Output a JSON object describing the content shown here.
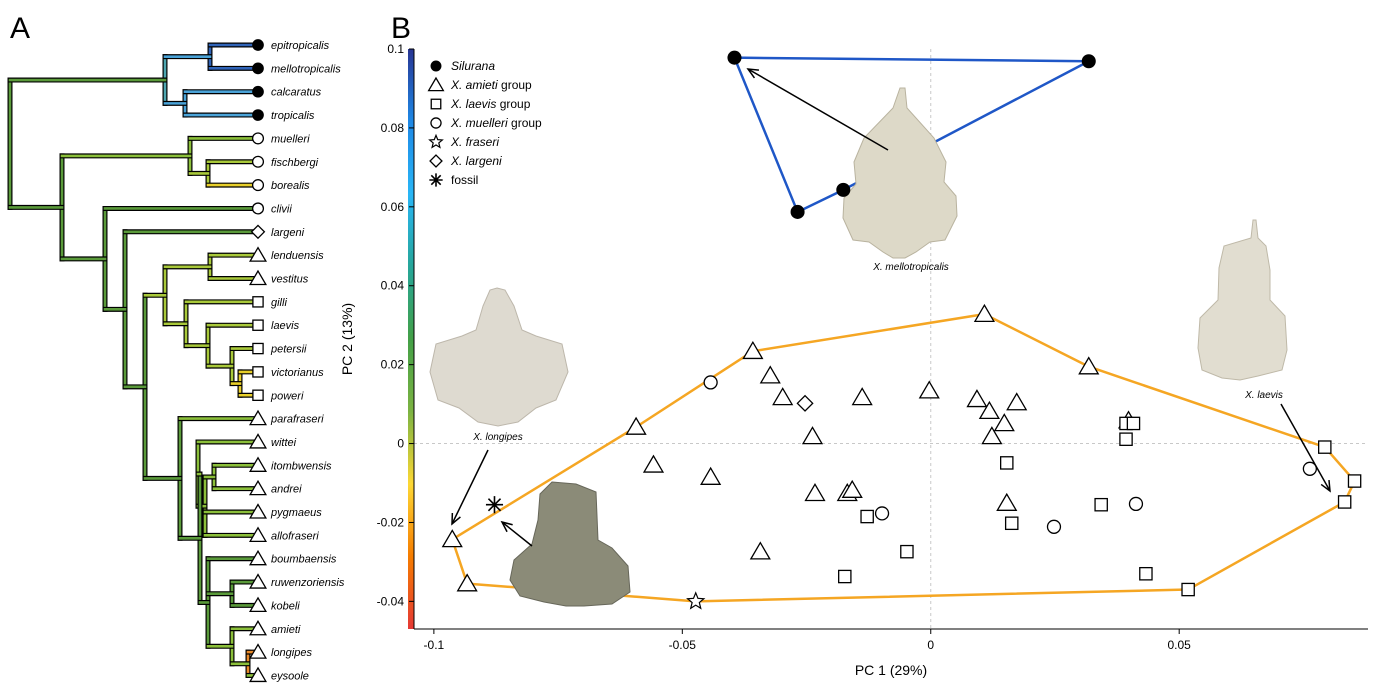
{
  "panels": {
    "a": "A",
    "b": "B"
  },
  "tree": {
    "tips": [
      {
        "name": "epitropicalis",
        "group": "silurana"
      },
      {
        "name": "mellotropicalis",
        "group": "silurana"
      },
      {
        "name": "calcaratus",
        "group": "silurana"
      },
      {
        "name": "tropicalis",
        "group": "silurana"
      },
      {
        "name": "muelleri",
        "group": "muelleri"
      },
      {
        "name": "fischbergi",
        "group": "muelleri"
      },
      {
        "name": "borealis",
        "group": "muelleri"
      },
      {
        "name": "clivii",
        "group": "muelleri"
      },
      {
        "name": "largeni",
        "group": "largeni"
      },
      {
        "name": "lenduensis",
        "group": "amieti"
      },
      {
        "name": "vestitus",
        "group": "amieti"
      },
      {
        "name": "gilli",
        "group": "laevis"
      },
      {
        "name": "laevis",
        "group": "laevis"
      },
      {
        "name": "petersii",
        "group": "laevis"
      },
      {
        "name": "victorianus",
        "group": "laevis"
      },
      {
        "name": "poweri",
        "group": "laevis"
      },
      {
        "name": "parafraseri",
        "group": "amieti"
      },
      {
        "name": "wittei",
        "group": "amieti"
      },
      {
        "name": "itombwensis",
        "group": "amieti"
      },
      {
        "name": "andrei",
        "group": "amieti"
      },
      {
        "name": "pygmaeus",
        "group": "amieti"
      },
      {
        "name": "allofraseri",
        "group": "amieti"
      },
      {
        "name": "boumbaensis",
        "group": "amieti"
      },
      {
        "name": "ruwenzoriensis",
        "group": "amieti"
      },
      {
        "name": "kobeli",
        "group": "amieti"
      },
      {
        "name": "amieti",
        "group": "amieti"
      },
      {
        "name": "longipes",
        "group": "amieti"
      },
      {
        "name": "eysoole",
        "group": "amieti"
      }
    ]
  },
  "chart_data": {
    "type": "scatter",
    "xlabel": "PC 1 (29%)",
    "ylabel": "PC 2 (13%)",
    "xlim": [
      -0.104,
      0.088
    ],
    "ylim": [
      -0.047,
      0.1
    ],
    "xticks": [
      {
        "v": -0.1,
        "label": "-0.1"
      },
      {
        "v": -0.05,
        "label": "-0.05"
      },
      {
        "v": 0,
        "label": "0"
      },
      {
        "v": 0.05,
        "label": "0.05"
      }
    ],
    "yticks": [
      {
        "v": 0.1,
        "label": "0.1"
      },
      {
        "v": 0.08,
        "label": "0.08"
      },
      {
        "v": 0.06,
        "label": "0.06"
      },
      {
        "v": 0.04,
        "label": "0.04"
      },
      {
        "v": 0.02,
        "label": "0.02"
      },
      {
        "v": 0,
        "label": "0"
      },
      {
        "v": -0.02,
        "label": "-0.02"
      },
      {
        "v": -0.04,
        "label": "-0.04"
      }
    ],
    "legend": {
      "placement": "top-left",
      "entries": [
        {
          "marker": "circle-filled",
          "parts": [
            {
              "t": "Silurana",
              "i": true
            }
          ]
        },
        {
          "marker": "triangle",
          "parts": [
            {
              "t": "X. amieti",
              "i": true
            },
            {
              "t": " group",
              "i": false
            }
          ]
        },
        {
          "marker": "square",
          "parts": [
            {
              "t": "X. laevis",
              "i": true
            },
            {
              "t": " group",
              "i": false
            }
          ]
        },
        {
          "marker": "circle",
          "parts": [
            {
              "t": "X. muelleri",
              "i": true
            },
            {
              "t": " group",
              "i": false
            }
          ]
        },
        {
          "marker": "star",
          "parts": [
            {
              "t": "X. fraseri",
              "i": true
            }
          ]
        },
        {
          "marker": "diamond",
          "parts": [
            {
              "t": "X. largeni",
              "i": true
            }
          ]
        },
        {
          "marker": "asterisk",
          "parts": [
            {
              "t": "fossil",
              "i": false
            }
          ]
        }
      ]
    },
    "series": [
      {
        "marker": "circle-filled",
        "points": [
          [
            -0.0395,
            0.0978
          ],
          [
            0.0318,
            0.0969
          ],
          [
            -0.0176,
            0.0643
          ],
          [
            -0.0268,
            0.0587
          ]
        ]
      },
      {
        "marker": "triangle",
        "points": [
          [
            -0.0963,
            -0.0243
          ],
          [
            -0.0933,
            -0.0355
          ],
          [
            -0.0593,
            0.0042
          ],
          [
            -0.0558,
            -0.0054
          ],
          [
            -0.0443,
            -0.0085
          ],
          [
            -0.0358,
            0.0234
          ],
          [
            -0.0343,
            -0.0274
          ],
          [
            -0.0323,
            0.0172
          ],
          [
            -0.0298,
            0.0117
          ],
          [
            -0.0238,
            0.0018
          ],
          [
            -0.0233,
            -0.0126
          ],
          [
            -0.0168,
            -0.0126
          ],
          [
            -0.0158,
            -0.0118
          ],
          [
            -0.0138,
            0.0117
          ],
          [
            -0.0003,
            0.0134
          ],
          [
            0.0108,
            0.0328
          ],
          [
            0.0093,
            0.0112
          ],
          [
            0.0118,
            0.0082
          ],
          [
            0.0123,
            0.0018
          ],
          [
            0.0148,
            0.0051
          ],
          [
            0.0173,
            0.0104
          ],
          [
            0.0153,
            -0.0151
          ],
          [
            0.0318,
            0.0195
          ],
          [
            0.0398,
            0.0058
          ]
        ]
      },
      {
        "marker": "square",
        "points": [
          [
            -0.0173,
            -0.0337
          ],
          [
            -0.0128,
            -0.0185
          ],
          [
            -0.0048,
            -0.0274
          ],
          [
            0.0153,
            -0.0049
          ],
          [
            0.0163,
            -0.0202
          ],
          [
            0.0343,
            -0.0155
          ],
          [
            0.0393,
            0.0011
          ],
          [
            0.0393,
            0.0051
          ],
          [
            0.0408,
            0.0051
          ],
          [
            0.0433,
            -0.033
          ],
          [
            0.0518,
            -0.037
          ],
          [
            0.0793,
            -0.0009
          ],
          [
            0.0833,
            -0.0148
          ],
          [
            0.0853,
            -0.0095
          ]
        ]
      },
      {
        "marker": "circle",
        "points": [
          [
            -0.0443,
            0.0155
          ],
          [
            -0.0098,
            -0.0177
          ],
          [
            0.0248,
            -0.0211
          ],
          [
            0.0413,
            -0.0153
          ],
          [
            0.0763,
            -0.0064
          ]
        ]
      },
      {
        "marker": "star",
        "points": [
          [
            -0.0473,
            -0.04
          ]
        ]
      },
      {
        "marker": "diamond",
        "points": [
          [
            -0.0253,
            0.0102
          ]
        ]
      },
      {
        "marker": "asterisk",
        "points": [
          [
            -0.0878,
            -0.0155
          ]
        ]
      }
    ],
    "hulls": [
      {
        "color": "#f5a623",
        "points": [
          [
            -0.0963,
            -0.0243
          ],
          [
            -0.0593,
            0.0042
          ],
          [
            -0.0358,
            0.0234
          ],
          [
            0.0108,
            0.0328
          ],
          [
            0.0318,
            0.0195
          ],
          [
            0.0793,
            -0.0009
          ],
          [
            0.0853,
            -0.0095
          ],
          [
            0.0833,
            -0.0148
          ],
          [
            0.0518,
            -0.037
          ],
          [
            -0.0473,
            -0.04
          ],
          [
            -0.0933,
            -0.0355
          ]
        ]
      },
      {
        "color": "#1f57c7",
        "points": [
          [
            -0.0395,
            0.0978
          ],
          [
            0.0318,
            0.0969
          ],
          [
            -0.0176,
            0.0643
          ],
          [
            -0.0268,
            0.0587
          ]
        ]
      }
    ],
    "colorbar": {
      "range": [
        -0.047,
        0.1
      ],
      "stops": [
        "#e53935",
        "#f57c00",
        "#fdd835",
        "#7cb342",
        "#43a047",
        "#26a69a",
        "#29b6f6",
        "#1e88e5",
        "#283593"
      ]
    },
    "specimens": [
      {
        "label": "X. mellotropicalis",
        "color": "#ddd9c8"
      },
      {
        "label": "X. laevis",
        "color": "#e1ddd0"
      },
      {
        "label": "X. longipes",
        "color": "#dedad0"
      },
      {
        "label": "",
        "color": "#8b8b78"
      }
    ]
  }
}
